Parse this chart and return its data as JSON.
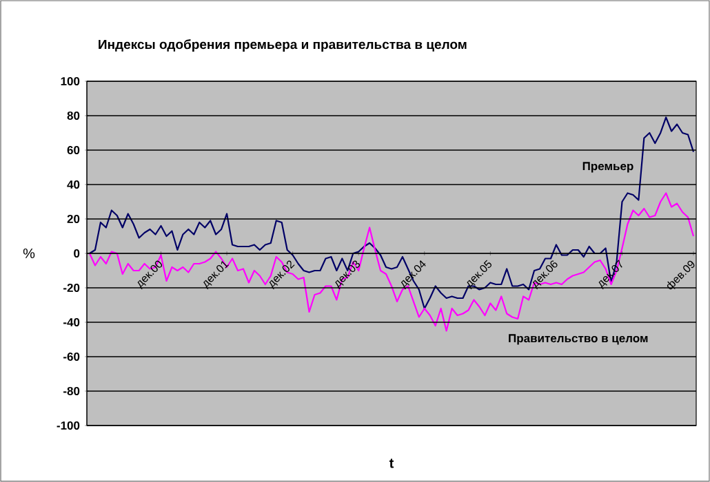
{
  "chart_data": {
    "type": "line",
    "title": "Индексы одобрения премьера и правительства в целом",
    "xlabel": "t",
    "ylabel": "%",
    "categories": [
      null,
      null,
      null,
      null,
      null,
      null,
      null,
      null,
      null,
      null,
      null,
      null,
      null,
      "дек.00",
      null,
      null,
      null,
      null,
      null,
      null,
      null,
      null,
      null,
      null,
      null,
      "дек.01",
      null,
      null,
      null,
      null,
      null,
      null,
      null,
      null,
      null,
      null,
      null,
      "дек.02",
      null,
      null,
      null,
      null,
      null,
      null,
      null,
      null,
      null,
      null,
      null,
      "дек.03",
      null,
      null,
      null,
      null,
      null,
      null,
      null,
      null,
      null,
      null,
      null,
      "дек.04",
      null,
      null,
      null,
      null,
      null,
      null,
      null,
      null,
      null,
      null,
      null,
      "дек.05",
      null,
      null,
      null,
      null,
      null,
      null,
      null,
      null,
      null,
      null,
      null,
      "дек.06",
      null,
      null,
      null,
      null,
      null,
      null,
      null,
      null,
      null,
      null,
      null,
      "дек.07",
      null,
      null,
      null,
      null,
      null,
      null,
      null,
      null,
      null,
      null,
      null,
      null,
      "фев.09"
    ],
    "series": [
      {
        "name": "Премьер",
        "color": "#000066",
        "values": [
          0,
          2,
          18,
          15,
          25,
          22,
          15,
          23,
          17,
          9,
          12,
          14,
          11,
          16,
          10,
          13,
          2,
          11,
          14,
          11,
          18,
          15,
          19,
          11,
          14,
          23,
          5,
          4,
          4,
          4,
          5,
          2,
          5,
          6,
          19,
          18,
          2,
          -1,
          -6,
          -10,
          -11,
          -10,
          -10,
          -3,
          -2,
          -10,
          -3,
          -10,
          0,
          1,
          4,
          6,
          3,
          -1,
          -8,
          -9,
          -8,
          -2,
          -9,
          -16,
          -21,
          -32,
          -26,
          -19,
          -23,
          -26,
          -25,
          -26,
          -26,
          -19,
          -19,
          -21,
          -20,
          -17,
          -18,
          -18,
          -9,
          -19,
          -19,
          -18,
          -21,
          -10,
          -9,
          -3,
          -3,
          5,
          -1,
          -1,
          2,
          2,
          -2,
          4,
          0,
          0,
          3,
          -17,
          -5,
          30,
          35,
          34,
          31,
          67,
          70,
          64,
          70,
          79,
          71,
          75,
          70,
          69,
          59
        ]
      },
      {
        "name": "Правительство в целом",
        "color": "#ff00ff",
        "values": [
          0,
          -7,
          -2,
          -6,
          1,
          0,
          -12,
          -6,
          -10,
          -10,
          -6,
          -9,
          -8,
          -1,
          -16,
          -8,
          -10,
          -8,
          -11,
          -6,
          -6,
          -5,
          -3,
          1,
          -3,
          -8,
          -3,
          -10,
          -9,
          -17,
          -10,
          -13,
          -18,
          -13,
          -2,
          -5,
          -11,
          -12,
          -15,
          -14,
          -34,
          -24,
          -23,
          -19,
          -19,
          -27,
          -15,
          -14,
          -5,
          -10,
          3,
          15,
          2,
          -10,
          -12,
          -19,
          -28,
          -21,
          -19,
          -28,
          -37,
          -32,
          -36,
          -42,
          -32,
          -45,
          -32,
          -36,
          -35,
          -33,
          -27,
          -31,
          -36,
          -29,
          -33,
          -25,
          -35,
          -37,
          -38,
          -25,
          -27,
          -17,
          -18,
          -17,
          -18,
          -17,
          -18,
          -15,
          -13,
          -12,
          -11,
          -8,
          -5,
          -4,
          -9,
          -18,
          -10,
          3,
          17,
          25,
          22,
          26,
          21,
          22,
          30,
          35,
          27,
          29,
          24,
          21,
          10
        ]
      }
    ],
    "ylim": [
      -100,
      100
    ],
    "yticks": [
      -100,
      -80,
      -60,
      -40,
      -20,
      0,
      20,
      40,
      60,
      80,
      100
    ],
    "grid": "y",
    "legend": false,
    "marker": "none",
    "line_style": "solid"
  }
}
